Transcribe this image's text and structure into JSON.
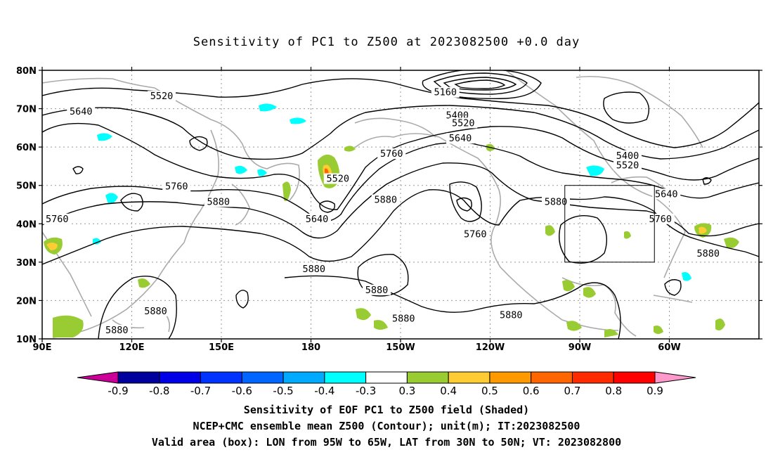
{
  "title": "Sensitivity of PC1 to Z500 at 2023082500 +0.0 day",
  "map": {
    "lat_ticks": [
      "80N",
      "70N",
      "60N",
      "50N",
      "40N",
      "30N",
      "20N",
      "10N"
    ],
    "lon_ticks": [
      "90E",
      "120E",
      "150E",
      "180",
      "150W",
      "120W",
      "90W",
      "60W"
    ],
    "contour_labels": [
      {
        "text": "5520",
        "lon": 130,
        "lat": 73
      },
      {
        "text": "5640",
        "lon": 103,
        "lat": 69
      },
      {
        "text": "5160",
        "lon": 225,
        "lat": 74
      },
      {
        "text": "5400",
        "lon": 229,
        "lat": 68
      },
      {
        "text": "5520",
        "lon": 231,
        "lat": 66
      },
      {
        "text": "5640",
        "lon": 230,
        "lat": 62
      },
      {
        "text": "5760",
        "lon": 207,
        "lat": 58
      },
      {
        "text": "5520",
        "lon": 189,
        "lat": 51.5
      },
      {
        "text": "5760",
        "lon": 135,
        "lat": 49.5
      },
      {
        "text": "5880",
        "lon": 149,
        "lat": 45.5
      },
      {
        "text": "5640",
        "lon": 182,
        "lat": 41
      },
      {
        "text": "5880",
        "lon": 205,
        "lat": 46
      },
      {
        "text": "5760",
        "lon": 235,
        "lat": 37
      },
      {
        "text": "5880",
        "lon": 262,
        "lat": 45.5
      },
      {
        "text": "5400",
        "lon": 286,
        "lat": 57.5
      },
      {
        "text": "5520",
        "lon": 286,
        "lat": 55
      },
      {
        "text": "5640",
        "lon": 299,
        "lat": 47.5
      },
      {
        "text": "5760",
        "lon": 297,
        "lat": 41
      },
      {
        "text": "5760",
        "lon": 95,
        "lat": 41
      },
      {
        "text": "5880",
        "lon": 181,
        "lat": 28
      },
      {
        "text": "5880",
        "lon": 202,
        "lat": 22.5
      },
      {
        "text": "5880",
        "lon": 211,
        "lat": 15
      },
      {
        "text": "5880",
        "lon": 128,
        "lat": 17
      },
      {
        "text": "5880",
        "lon": 247,
        "lat": 16
      },
      {
        "text": "5880",
        "lon": 115,
        "lat": 12
      },
      {
        "text": "5880",
        "lon": 313,
        "lat": 32
      }
    ],
    "valid_box": {
      "lon_min": 265,
      "lon_max": 295,
      "lat_min": 30,
      "lat_max": 50
    }
  },
  "colorbar": {
    "labels": [
      "-0.9",
      "-0.8",
      "-0.7",
      "-0.6",
      "-0.5",
      "-0.4",
      "-0.3",
      "0.3",
      "0.4",
      "0.5",
      "0.6",
      "0.7",
      "0.8",
      "0.9"
    ],
    "colors": [
      "#00009c",
      "#0000e6",
      "#0033ff",
      "#0066ff",
      "#00aaff",
      "#00ffff",
      "#ffffff",
      "#99cc33",
      "#ffcc33",
      "#ff9900",
      "#ff6600",
      "#ff2a00",
      "#ff0000"
    ],
    "low_end_color": "#cc0099",
    "high_end_color": "#ff99cc"
  },
  "captions": {
    "line1": "Sensitivity of EOF PC1 to Z500 field (Shaded)",
    "line2": "NCEP+CMC ensemble mean Z500 (Contour); unit(m); IT:2023082500",
    "line3": "Valid area (box): LON from 95W to 65W, LAT from 30N to 50N; VT: 2023082800"
  }
}
